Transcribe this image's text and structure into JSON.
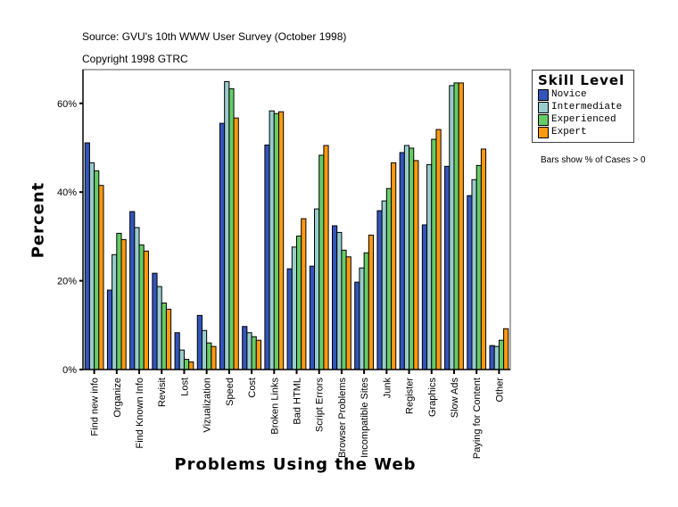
{
  "header": {
    "source": "Source: GVU's 10th WWW User Survey (October 1998)",
    "copyright": "Copyright 1998 GTRC"
  },
  "note": "Bars show % of Cases > 0",
  "chart_data": {
    "type": "bar",
    "xlabel": "Problems Using the Web",
    "ylabel": "Percent",
    "ylim": [
      0,
      67.6
    ],
    "yticks": [
      0,
      20,
      40,
      60
    ],
    "ytick_labels": [
      "0%",
      "20%",
      "40%",
      "60%"
    ],
    "grid": false,
    "legend": {
      "title": "Skill Level",
      "placement": "right"
    },
    "categories": [
      "Find new info",
      "Organize",
      "Find Known Info",
      "Revisit",
      "Lost",
      "Vizualization",
      "Speed",
      "Cost",
      "Broken Links",
      "Bad HTML",
      "Script Errors",
      "Browser Problems",
      "Incompatible Sites",
      "Junk",
      "Register",
      "Graphics",
      "Slow Ads",
      "Paying for Content",
      "Other"
    ],
    "series": [
      {
        "name": "Novice",
        "color": "#3355bb",
        "values": [
          51.1,
          17.9,
          35.6,
          21.7,
          8.3,
          12.2,
          55.5,
          9.7,
          50.6,
          22.7,
          23.3,
          32.4,
          19.7,
          35.8,
          48.9,
          32.6,
          45.8,
          39.2,
          5.4
        ]
      },
      {
        "name": "Intermediate",
        "color": "#99cccc",
        "values": [
          46.6,
          25.9,
          32.0,
          18.7,
          4.4,
          8.8,
          64.9,
          8.3,
          58.3,
          27.6,
          36.2,
          30.9,
          22.9,
          38.0,
          50.5,
          46.2,
          64.0,
          42.8,
          5.2
        ]
      },
      {
        "name": "Experienced",
        "color": "#66cc66",
        "values": [
          44.8,
          30.7,
          28.1,
          15.0,
          2.3,
          6.0,
          63.3,
          7.4,
          57.7,
          30.1,
          48.3,
          26.9,
          26.3,
          40.8,
          49.9,
          51.9,
          64.6,
          46.0,
          6.6
        ]
      },
      {
        "name": "Expert",
        "color": "#ff9911",
        "values": [
          41.5,
          29.3,
          26.7,
          13.6,
          1.7,
          5.2,
          56.7,
          6.6,
          58.1,
          34.0,
          50.5,
          25.4,
          30.3,
          46.6,
          47.1,
          54.1,
          64.6,
          49.7,
          9.2
        ]
      }
    ]
  }
}
